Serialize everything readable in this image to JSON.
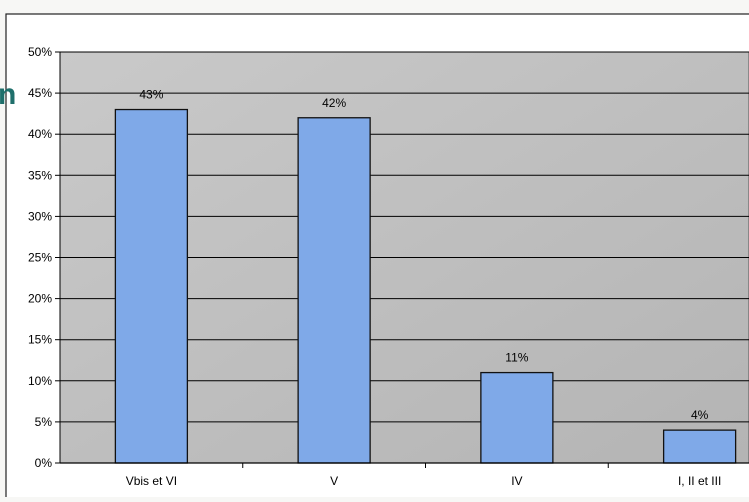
{
  "chart_data": {
    "type": "bar",
    "categories": [
      "Vbis et VI",
      "V",
      "IV",
      "I, II et III"
    ],
    "values": [
      43,
      42,
      11,
      4
    ],
    "value_labels": [
      "43%",
      "42%",
      "11%",
      "4%"
    ],
    "title": "",
    "xlabel": "",
    "ylabel": "",
    "ylim": [
      0,
      50
    ],
    "yticks": [
      0,
      5,
      10,
      15,
      20,
      25,
      30,
      35,
      40,
      45,
      50
    ],
    "ytick_labels": [
      "0%",
      "5%",
      "10%",
      "15%",
      "20%",
      "25%",
      "30%",
      "35%",
      "40%",
      "45%",
      "50%"
    ],
    "grid": true,
    "legend": "none",
    "colors": {
      "bar": "#7fa9e8",
      "bar_border": "#111111",
      "plot_background": "#bdbdbd",
      "gridline": "#000000",
      "left_edge_glyph": "#1f6f6b"
    }
  },
  "left_edge_glyph": "n"
}
